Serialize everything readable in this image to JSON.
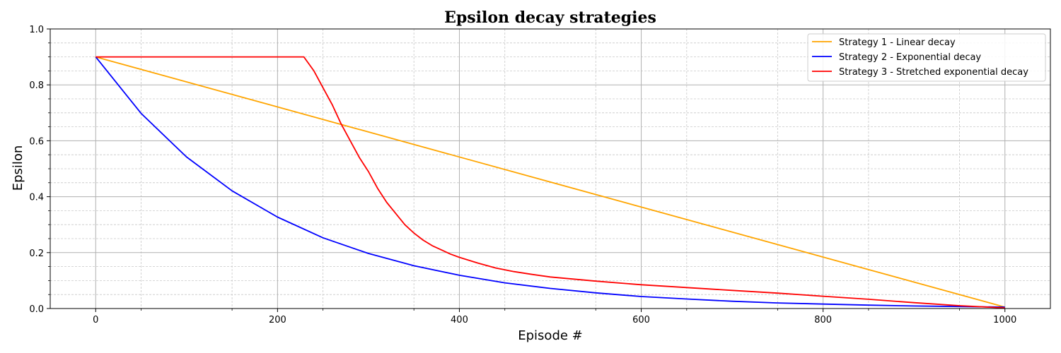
{
  "chart_data": {
    "type": "line",
    "title": "Epsilon decay strategies",
    "xlabel": "Episode #",
    "ylabel": "Epsilon",
    "xlim": [
      -50,
      1050
    ],
    "ylim": [
      0,
      1.0
    ],
    "xticks": [
      0,
      200,
      400,
      600,
      800,
      1000
    ],
    "xtick_labels": [
      "0",
      "200",
      "400",
      "600",
      "800",
      "1000"
    ],
    "yticks": [
      0,
      0.2,
      0.4,
      0.6,
      0.8,
      1.0
    ],
    "ytick_labels": [
      "0.0",
      "0.2",
      "0.4",
      "0.6",
      "0.8",
      "1.0"
    ],
    "grid": true,
    "minor_grid": true,
    "legend_position": "top-right",
    "series": [
      {
        "name": "Strategy 1 - Linear decay",
        "color": "#ffa500",
        "x": [
          0,
          1000
        ],
        "y": [
          0.9,
          0.005
        ]
      },
      {
        "name": "Strategy 2 - Exponential decay",
        "color": "#0000ff",
        "x": [
          0,
          50,
          100,
          150,
          200,
          250,
          300,
          350,
          400,
          450,
          500,
          550,
          600,
          650,
          700,
          750,
          800,
          850,
          900,
          950,
          1000
        ],
        "y": [
          0.9,
          0.698,
          0.542,
          0.421,
          0.327,
          0.253,
          0.197,
          0.153,
          0.119,
          0.092,
          0.072,
          0.056,
          0.043,
          0.034,
          0.026,
          0.02,
          0.016,
          0.012,
          0.009,
          0.007,
          0.005
        ]
      },
      {
        "name": "Strategy 3 - Stretched exponential decay",
        "color": "#ff0000",
        "x": [
          0,
          229,
          240,
          250,
          260,
          270,
          280,
          290,
          300,
          310,
          320,
          330,
          340,
          350,
          360,
          370,
          380,
          390,
          400,
          420,
          440,
          460,
          480,
          500,
          550,
          600,
          650,
          700,
          750,
          800,
          850,
          900,
          950,
          1000
        ],
        "y": [
          0.9,
          0.9,
          0.85,
          0.79,
          0.73,
          0.66,
          0.6,
          0.54,
          0.49,
          0.43,
          0.38,
          0.34,
          0.3,
          0.27,
          0.245,
          0.225,
          0.21,
          0.195,
          0.183,
          0.163,
          0.145,
          0.132,
          0.122,
          0.113,
          0.098,
          0.085,
          0.075,
          0.065,
          0.055,
          0.044,
          0.033,
          0.021,
          0.01,
          0.002
        ]
      }
    ]
  }
}
